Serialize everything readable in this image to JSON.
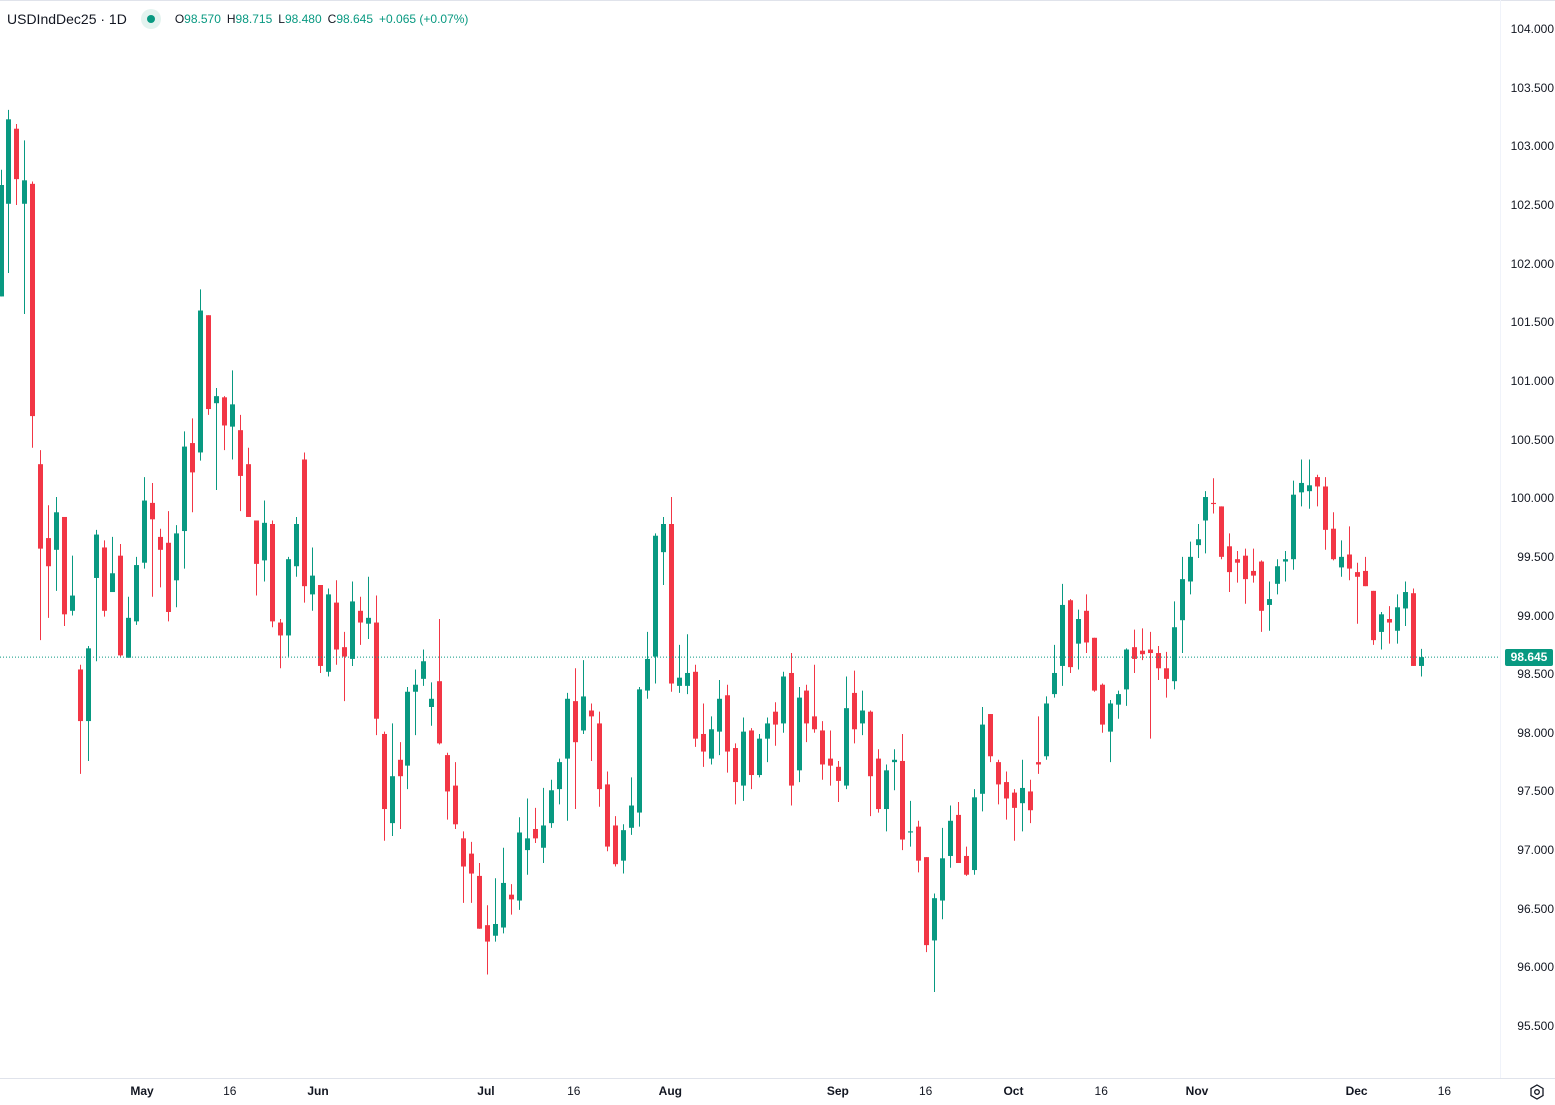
{
  "header": {
    "symbol": "USDIndDec25 · 1D",
    "status_icon": "market-status-dot",
    "open_label": "O",
    "open": "98.570",
    "high_label": "H",
    "high": "98.715",
    "low_label": "L",
    "low": "98.480",
    "close_label": "C",
    "close": "98.645",
    "change": "+0.065 (+0.07%)"
  },
  "last_price_label": "98.645",
  "colors": {
    "up": "#089981",
    "down": "#F23645",
    "last_line": "#089981"
  },
  "settings_icon": "gear-icon",
  "chart_data": {
    "type": "candlestick",
    "interval": "1D",
    "ylim": [
      95.5,
      104.0
    ],
    "y_ticks": [
      "104.000",
      "103.500",
      "103.000",
      "102.500",
      "102.000",
      "101.500",
      "101.000",
      "100.500",
      "100.000",
      "99.500",
      "99.000",
      "98.500",
      "98.000",
      "97.500",
      "97.000",
      "96.500",
      "96.000",
      "95.500"
    ],
    "x_ticks": [
      "May",
      "16",
      "Jun",
      "Jul",
      "16",
      "Aug",
      "Sep",
      "16",
      "Oct",
      "16",
      "Nov",
      "Dec",
      "16"
    ],
    "last_price": 98.645,
    "ohlc_fields": [
      "open",
      "high",
      "low",
      "close"
    ],
    "ohlc": [
      [
        101.72,
        102.8,
        101.72,
        102.67
      ],
      [
        102.51,
        103.31,
        101.92,
        103.23
      ],
      [
        103.15,
        103.19,
        102.5,
        102.72
      ],
      [
        102.51,
        103.05,
        101.57,
        102.71
      ],
      [
        102.68,
        102.7,
        100.43,
        100.7
      ],
      [
        100.29,
        100.41,
        98.79,
        99.57
      ],
      [
        99.66,
        99.94,
        98.98,
        99.42
      ],
      [
        99.56,
        100.01,
        99.21,
        99.88
      ],
      [
        99.84,
        99.84,
        98.91,
        99.01
      ],
      [
        99.04,
        99.51,
        99.0,
        99.17
      ],
      [
        98.54,
        98.58,
        97.65,
        98.1
      ],
      [
        98.1,
        98.74,
        97.76,
        98.72
      ],
      [
        99.32,
        99.73,
        98.61,
        99.69
      ],
      [
        99.58,
        99.64,
        98.99,
        99.04
      ],
      [
        99.2,
        99.67,
        99.2,
        99.36
      ],
      [
        99.51,
        99.61,
        98.65,
        98.66
      ],
      [
        98.64,
        99.16,
        98.64,
        98.98
      ],
      [
        98.95,
        99.5,
        98.92,
        99.43
      ],
      [
        99.45,
        100.18,
        99.4,
        99.98
      ],
      [
        99.96,
        100.13,
        99.16,
        99.82
      ],
      [
        99.67,
        99.74,
        99.24,
        99.56
      ],
      [
        99.62,
        99.89,
        98.95,
        99.03
      ],
      [
        99.3,
        99.77,
        99.07,
        99.7
      ],
      [
        99.72,
        100.57,
        99.4,
        100.44
      ],
      [
        100.47,
        100.68,
        99.88,
        100.22
      ],
      [
        100.39,
        101.78,
        100.32,
        101.6
      ],
      [
        101.56,
        101.56,
        100.71,
        100.76
      ],
      [
        100.81,
        100.94,
        100.07,
        100.87
      ],
      [
        100.86,
        100.87,
        100.41,
        100.62
      ],
      [
        100.61,
        101.09,
        100.33,
        100.8
      ],
      [
        100.58,
        100.71,
        99.89,
        100.19
      ],
      [
        100.29,
        100.43,
        99.84,
        99.84
      ],
      [
        99.81,
        99.81,
        99.17,
        99.44
      ],
      [
        99.47,
        99.98,
        99.29,
        99.79
      ],
      [
        99.78,
        99.81,
        98.9,
        98.95
      ],
      [
        98.94,
        98.97,
        98.55,
        98.83
      ],
      [
        98.83,
        99.5,
        98.65,
        99.48
      ],
      [
        99.42,
        99.84,
        99.33,
        99.78
      ],
      [
        100.33,
        100.39,
        99.11,
        99.25
      ],
      [
        99.18,
        99.58,
        99.04,
        99.34
      ],
      [
        99.26,
        99.26,
        98.51,
        98.57
      ],
      [
        98.52,
        99.23,
        98.48,
        99.18
      ],
      [
        99.11,
        99.3,
        98.58,
        98.71
      ],
      [
        98.73,
        98.86,
        98.27,
        98.65
      ],
      [
        98.63,
        99.29,
        98.57,
        99.12
      ],
      [
        99.04,
        99.16,
        98.75,
        98.94
      ],
      [
        98.93,
        99.33,
        98.8,
        98.98
      ],
      [
        98.94,
        99.17,
        97.98,
        98.12
      ],
      [
        97.99,
        98.01,
        97.08,
        97.35
      ],
      [
        97.23,
        98.08,
        97.12,
        97.63
      ],
      [
        97.77,
        97.92,
        97.18,
        97.63
      ],
      [
        97.72,
        98.39,
        97.52,
        98.35
      ],
      [
        98.35,
        98.54,
        97.98,
        98.41
      ],
      [
        98.46,
        98.71,
        98.4,
        98.61
      ],
      [
        98.22,
        98.43,
        98.06,
        98.29
      ],
      [
        98.44,
        98.97,
        97.9,
        97.91
      ],
      [
        97.81,
        97.83,
        97.26,
        97.5
      ],
      [
        97.55,
        97.75,
        97.18,
        97.22
      ],
      [
        97.1,
        97.16,
        96.55,
        96.86
      ],
      [
        96.97,
        97.07,
        96.55,
        96.8
      ],
      [
        96.78,
        96.89,
        96.33,
        96.33
      ],
      [
        96.36,
        96.53,
        95.94,
        96.22
      ],
      [
        96.27,
        96.76,
        96.22,
        96.37
      ],
      [
        96.34,
        97.02,
        96.29,
        96.72
      ],
      [
        96.62,
        96.71,
        96.45,
        96.58
      ],
      [
        96.57,
        97.28,
        96.49,
        97.15
      ],
      [
        97.0,
        97.44,
        96.79,
        97.1
      ],
      [
        97.18,
        97.36,
        97.06,
        97.1
      ],
      [
        97.02,
        97.53,
        96.89,
        97.21
      ],
      [
        97.23,
        97.6,
        97.19,
        97.51
      ],
      [
        97.52,
        97.78,
        97.39,
        97.75
      ],
      [
        97.78,
        98.34,
        97.25,
        98.29
      ],
      [
        98.27,
        98.55,
        97.35,
        97.92
      ],
      [
        98.02,
        98.62,
        97.99,
        98.31
      ],
      [
        98.19,
        98.25,
        97.76,
        98.14
      ],
      [
        98.08,
        98.18,
        97.37,
        97.52
      ],
      [
        97.56,
        97.67,
        96.99,
        97.03
      ],
      [
        97.21,
        97.29,
        96.86,
        96.88
      ],
      [
        96.91,
        97.22,
        96.8,
        97.17
      ],
      [
        97.19,
        97.62,
        97.13,
        97.38
      ],
      [
        97.32,
        98.39,
        97.2,
        98.37
      ],
      [
        98.36,
        98.86,
        98.29,
        98.63
      ],
      [
        98.65,
        99.7,
        98.42,
        99.68
      ],
      [
        99.54,
        99.84,
        99.26,
        99.78
      ],
      [
        99.78,
        100.01,
        98.35,
        98.42
      ],
      [
        98.4,
        98.75,
        98.34,
        98.47
      ],
      [
        98.4,
        98.84,
        98.33,
        98.51
      ],
      [
        98.52,
        98.58,
        97.88,
        97.95
      ],
      [
        97.99,
        98.25,
        97.71,
        97.84
      ],
      [
        97.78,
        98.14,
        97.73,
        98.03
      ],
      [
        98.01,
        98.45,
        97.81,
        98.29
      ],
      [
        98.32,
        98.41,
        97.66,
        97.84
      ],
      [
        97.87,
        97.91,
        97.39,
        97.58
      ],
      [
        97.55,
        98.13,
        97.42,
        98.01
      ],
      [
        98.02,
        98.04,
        97.52,
        97.64
      ],
      [
        97.64,
        97.99,
        97.62,
        97.95
      ],
      [
        97.95,
        98.13,
        97.75,
        98.08
      ],
      [
        98.18,
        98.26,
        97.89,
        98.07
      ],
      [
        98.08,
        98.52,
        98.0,
        98.48
      ],
      [
        98.51,
        98.68,
        97.38,
        97.55
      ],
      [
        97.68,
        98.39,
        97.58,
        98.3
      ],
      [
        98.36,
        98.41,
        97.92,
        98.08
      ],
      [
        98.14,
        98.58,
        98.0,
        98.03
      ],
      [
        98.02,
        98.1,
        97.6,
        97.73
      ],
      [
        97.78,
        98.02,
        97.55,
        97.72
      ],
      [
        97.71,
        97.76,
        97.41,
        97.59
      ],
      [
        97.55,
        98.48,
        97.52,
        98.21
      ],
      [
        98.34,
        98.53,
        97.91,
        98.03
      ],
      [
        98.08,
        98.36,
        97.98,
        98.19
      ],
      [
        98.18,
        98.19,
        97.29,
        97.63
      ],
      [
        97.78,
        97.86,
        97.32,
        97.35
      ],
      [
        97.35,
        97.73,
        97.16,
        97.68
      ],
      [
        97.75,
        97.86,
        97.51,
        97.77
      ],
      [
        97.76,
        97.99,
        97.0,
        97.09
      ],
      [
        97.15,
        97.42,
        97.03,
        97.16
      ],
      [
        97.2,
        97.25,
        96.81,
        96.91
      ],
      [
        96.94,
        96.94,
        96.13,
        96.19
      ],
      [
        96.23,
        96.63,
        95.79,
        96.59
      ],
      [
        96.57,
        97.19,
        96.41,
        96.93
      ],
      [
        96.95,
        97.38,
        96.85,
        97.25
      ],
      [
        97.3,
        97.41,
        96.89,
        96.89
      ],
      [
        96.95,
        97.03,
        96.78,
        96.79
      ],
      [
        96.83,
        97.52,
        96.79,
        97.45
      ],
      [
        97.48,
        98.22,
        97.33,
        98.07
      ],
      [
        98.16,
        98.16,
        97.75,
        97.8
      ],
      [
        97.75,
        97.77,
        97.39,
        97.56
      ],
      [
        97.58,
        97.67,
        97.26,
        97.44
      ],
      [
        97.49,
        97.52,
        97.08,
        97.36
      ],
      [
        97.4,
        97.77,
        97.16,
        97.53
      ],
      [
        97.5,
        97.6,
        97.23,
        97.34
      ],
      [
        97.75,
        98.14,
        97.65,
        97.73
      ],
      [
        97.8,
        98.31,
        97.77,
        98.25
      ],
      [
        98.33,
        98.75,
        98.3,
        98.51
      ],
      [
        98.57,
        99.27,
        98.4,
        99.09
      ],
      [
        99.13,
        99.14,
        98.51,
        98.56
      ],
      [
        98.76,
        99.05,
        98.54,
        98.97
      ],
      [
        99.04,
        99.18,
        98.68,
        98.77
      ],
      [
        98.81,
        98.81,
        98.35,
        98.36
      ],
      [
        98.41,
        98.42,
        98.0,
        98.07
      ],
      [
        98.01,
        98.28,
        97.75,
        98.25
      ],
      [
        98.24,
        98.36,
        98.12,
        98.33
      ],
      [
        98.37,
        98.72,
        98.23,
        98.71
      ],
      [
        98.73,
        98.88,
        98.51,
        98.63
      ],
      [
        98.7,
        98.89,
        98.62,
        98.67
      ],
      [
        98.71,
        98.86,
        97.95,
        98.68
      ],
      [
        98.68,
        98.74,
        98.45,
        98.55
      ],
      [
        98.55,
        98.69,
        98.3,
        98.46
      ],
      [
        98.44,
        99.12,
        98.37,
        98.9
      ],
      [
        98.96,
        99.5,
        98.68,
        99.31
      ],
      [
        99.29,
        99.63,
        99.18,
        99.5
      ],
      [
        99.6,
        99.78,
        99.49,
        99.65
      ],
      [
        99.81,
        100.06,
        99.53,
        100.01
      ],
      [
        99.96,
        100.17,
        99.87,
        99.95
      ],
      [
        99.93,
        99.93,
        99.48,
        99.5
      ],
      [
        99.59,
        99.7,
        99.2,
        99.37
      ],
      [
        99.48,
        99.55,
        99.28,
        99.45
      ],
      [
        99.51,
        99.57,
        99.1,
        99.31
      ],
      [
        99.38,
        99.57,
        99.28,
        99.34
      ],
      [
        99.46,
        99.47,
        98.86,
        99.04
      ],
      [
        99.09,
        99.29,
        98.87,
        99.14
      ],
      [
        99.27,
        99.48,
        99.18,
        99.42
      ],
      [
        99.46,
        99.55,
        99.29,
        99.48
      ],
      [
        99.48,
        100.15,
        99.39,
        100.03
      ],
      [
        100.05,
        100.33,
        99.93,
        100.13
      ],
      [
        100.06,
        100.33,
        99.91,
        100.11
      ],
      [
        100.18,
        100.2,
        99.93,
        100.1
      ],
      [
        100.1,
        100.18,
        99.56,
        99.73
      ],
      [
        99.74,
        99.88,
        99.47,
        99.48
      ],
      [
        99.41,
        99.64,
        99.33,
        99.5
      ],
      [
        99.52,
        99.76,
        99.3,
        99.4
      ],
      [
        99.37,
        99.45,
        98.93,
        99.33
      ],
      [
        99.38,
        99.5,
        99.25,
        99.25
      ],
      [
        99.21,
        99.21,
        98.75,
        98.79
      ],
      [
        98.86,
        99.03,
        98.71,
        99.01
      ],
      [
        98.97,
        99.08,
        98.76,
        98.94
      ],
      [
        98.87,
        99.18,
        98.76,
        99.07
      ],
      [
        99.06,
        99.29,
        98.91,
        99.2
      ],
      [
        99.19,
        99.23,
        98.57,
        98.57
      ],
      [
        98.57,
        98.715,
        98.48,
        98.645
      ]
    ]
  }
}
